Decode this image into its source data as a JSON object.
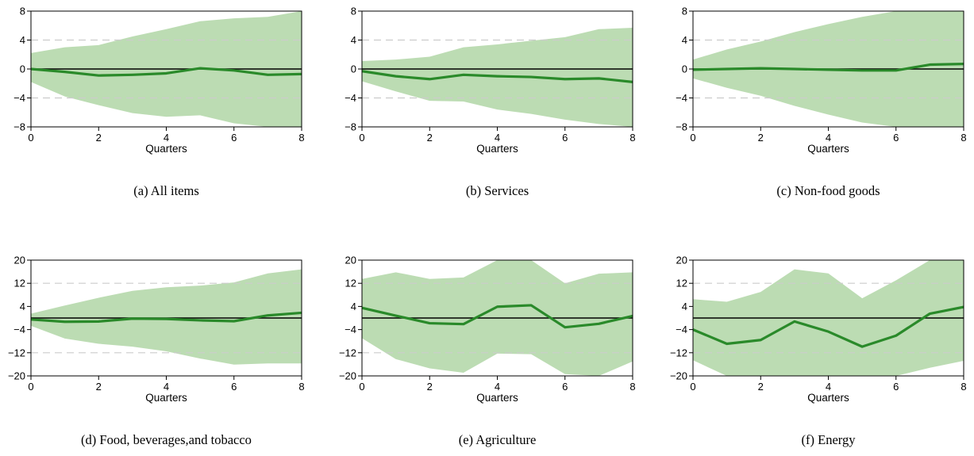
{
  "colors": {
    "band": "#bcdcb3",
    "line": "#2a8a2a",
    "zero": "#000000",
    "grid": "#cccccc"
  },
  "chart_data": [
    {
      "type": "line",
      "caption": "(a) All items",
      "xlabel": "Quarters",
      "xlim": [
        0,
        8
      ],
      "ylim": [
        -8,
        8
      ],
      "xticks": [
        0,
        2,
        4,
        6,
        8
      ],
      "yticks": [
        -8,
        -4,
        0,
        4,
        8
      ],
      "ytick_labels": [
        "−8",
        "−4",
        "0",
        "4",
        "8"
      ],
      "grid_y": [
        -4,
        4
      ],
      "x": [
        0,
        1,
        2,
        3,
        4,
        5,
        6,
        7,
        8
      ],
      "values": [
        0.0,
        -0.4,
        -0.9,
        -0.8,
        -0.6,
        0.1,
        -0.2,
        -0.8,
        -0.7
      ],
      "upper": [
        2.2,
        3.0,
        3.3,
        4.5,
        5.5,
        6.6,
        7.0,
        7.2,
        8.0
      ],
      "lower": [
        -1.8,
        -3.8,
        -5.0,
        -6.1,
        -6.6,
        -6.4,
        -7.5,
        -8.0,
        -8.0
      ]
    },
    {
      "type": "line",
      "caption": "(b) Services",
      "xlabel": "Quarters",
      "xlim": [
        0,
        8
      ],
      "ylim": [
        -8,
        8
      ],
      "xticks": [
        0,
        2,
        4,
        6,
        8
      ],
      "yticks": [
        -8,
        -4,
        0,
        4,
        8
      ],
      "ytick_labels": [
        "−8",
        "−4",
        "0",
        "4",
        "8"
      ],
      "grid_y": [
        -4,
        4
      ],
      "x": [
        0,
        1,
        2,
        3,
        4,
        5,
        6,
        7,
        8
      ],
      "values": [
        -0.3,
        -1.0,
        -1.4,
        -0.8,
        -1.0,
        -1.1,
        -1.4,
        -1.3,
        -1.8
      ],
      "upper": [
        1.1,
        1.3,
        1.7,
        3.0,
        3.4,
        3.9,
        4.4,
        5.5,
        5.7
      ],
      "lower": [
        -1.7,
        -3.1,
        -4.4,
        -4.5,
        -5.6,
        -6.2,
        -7.0,
        -7.6,
        -8.0
      ]
    },
    {
      "type": "line",
      "caption": "(c) Non-food goods",
      "xlabel": "Quarters",
      "xlim": [
        0,
        8
      ],
      "ylim": [
        -8,
        8
      ],
      "xticks": [
        0,
        2,
        4,
        6,
        8
      ],
      "yticks": [
        -8,
        -4,
        0,
        4,
        8
      ],
      "ytick_labels": [
        "−8",
        "−4",
        "0",
        "4",
        "8"
      ],
      "grid_y": [
        -4,
        4
      ],
      "x": [
        0,
        1,
        2,
        3,
        4,
        5,
        6,
        7,
        8
      ],
      "values": [
        -0.1,
        0.0,
        0.1,
        0.0,
        -0.1,
        -0.2,
        -0.2,
        0.6,
        0.7
      ],
      "upper": [
        1.3,
        2.7,
        3.8,
        5.1,
        6.2,
        7.2,
        8.0,
        8.0,
        8.0
      ],
      "lower": [
        -1.3,
        -2.6,
        -3.7,
        -5.1,
        -6.3,
        -7.4,
        -8.0,
        -8.0,
        -8.0
      ]
    },
    {
      "type": "line",
      "caption": "(d) Food, beverages,and tobacco",
      "xlabel": "Quarters",
      "xlim": [
        0,
        8
      ],
      "ylim": [
        -20,
        20
      ],
      "xticks": [
        0,
        2,
        4,
        6,
        8
      ],
      "yticks": [
        -20,
        -12,
        -4,
        4,
        12,
        20
      ],
      "ytick_labels": [
        "−20",
        "−12",
        "−4",
        "4",
        "12",
        "20"
      ],
      "grid_y": [
        -12,
        12
      ],
      "x": [
        0,
        1,
        2,
        3,
        4,
        5,
        6,
        7,
        8
      ],
      "values": [
        -0.5,
        -1.3,
        -1.2,
        -0.2,
        -0.3,
        -0.8,
        -1.1,
        0.9,
        1.8
      ],
      "upper": [
        1.5,
        4.3,
        7.0,
        9.4,
        10.6,
        11.2,
        12.3,
        15.4,
        16.8
      ],
      "lower": [
        -2.7,
        -7.1,
        -8.9,
        -9.9,
        -11.5,
        -14.0,
        -16.1,
        -15.7,
        -15.7
      ]
    },
    {
      "type": "line",
      "caption": "(e) Agriculture",
      "xlabel": "Quarters",
      "xlim": [
        0,
        8
      ],
      "ylim": [
        -20,
        20
      ],
      "xticks": [
        0,
        2,
        4,
        6,
        8
      ],
      "yticks": [
        -20,
        -12,
        -4,
        4,
        12,
        20
      ],
      "ytick_labels": [
        "−20",
        "−12",
        "−4",
        "4",
        "12",
        "20"
      ],
      "grid_y": [
        -12,
        12
      ],
      "x": [
        0,
        1,
        2,
        3,
        4,
        5,
        6,
        7,
        8
      ],
      "values": [
        3.5,
        0.8,
        -1.8,
        -2.1,
        3.9,
        4.4,
        -3.2,
        -2.0,
        0.7
      ],
      "upper": [
        13.5,
        15.8,
        13.5,
        14.0,
        20.0,
        20.0,
        12.0,
        15.3,
        15.8
      ],
      "lower": [
        -7.0,
        -14.2,
        -17.4,
        -18.9,
        -12.3,
        -12.5,
        -19.4,
        -20.0,
        -15.0
      ]
    },
    {
      "type": "line",
      "caption": "(f) Energy",
      "xlabel": "Quarters",
      "xlim": [
        0,
        8
      ],
      "ylim": [
        -20,
        20
      ],
      "xticks": [
        0,
        2,
        4,
        6,
        8
      ],
      "yticks": [
        -20,
        -12,
        -4,
        4,
        12,
        20
      ],
      "ytick_labels": [
        "−20",
        "−12",
        "−4",
        "4",
        "12",
        "20"
      ],
      "grid_y": [
        -12,
        12
      ],
      "x": [
        0,
        1,
        2,
        3,
        4,
        5,
        6,
        7,
        8
      ],
      "values": [
        -4.0,
        -8.9,
        -7.6,
        -1.2,
        -4.7,
        -9.9,
        -6.1,
        1.5,
        3.8
      ],
      "upper": [
        6.5,
        5.6,
        9.0,
        16.8,
        15.4,
        6.8,
        13.0,
        20.0,
        20.0
      ],
      "lower": [
        -14.6,
        -20.0,
        -20.0,
        -20.0,
        -20.0,
        -20.0,
        -20.0,
        -17.2,
        -14.8
      ]
    }
  ]
}
